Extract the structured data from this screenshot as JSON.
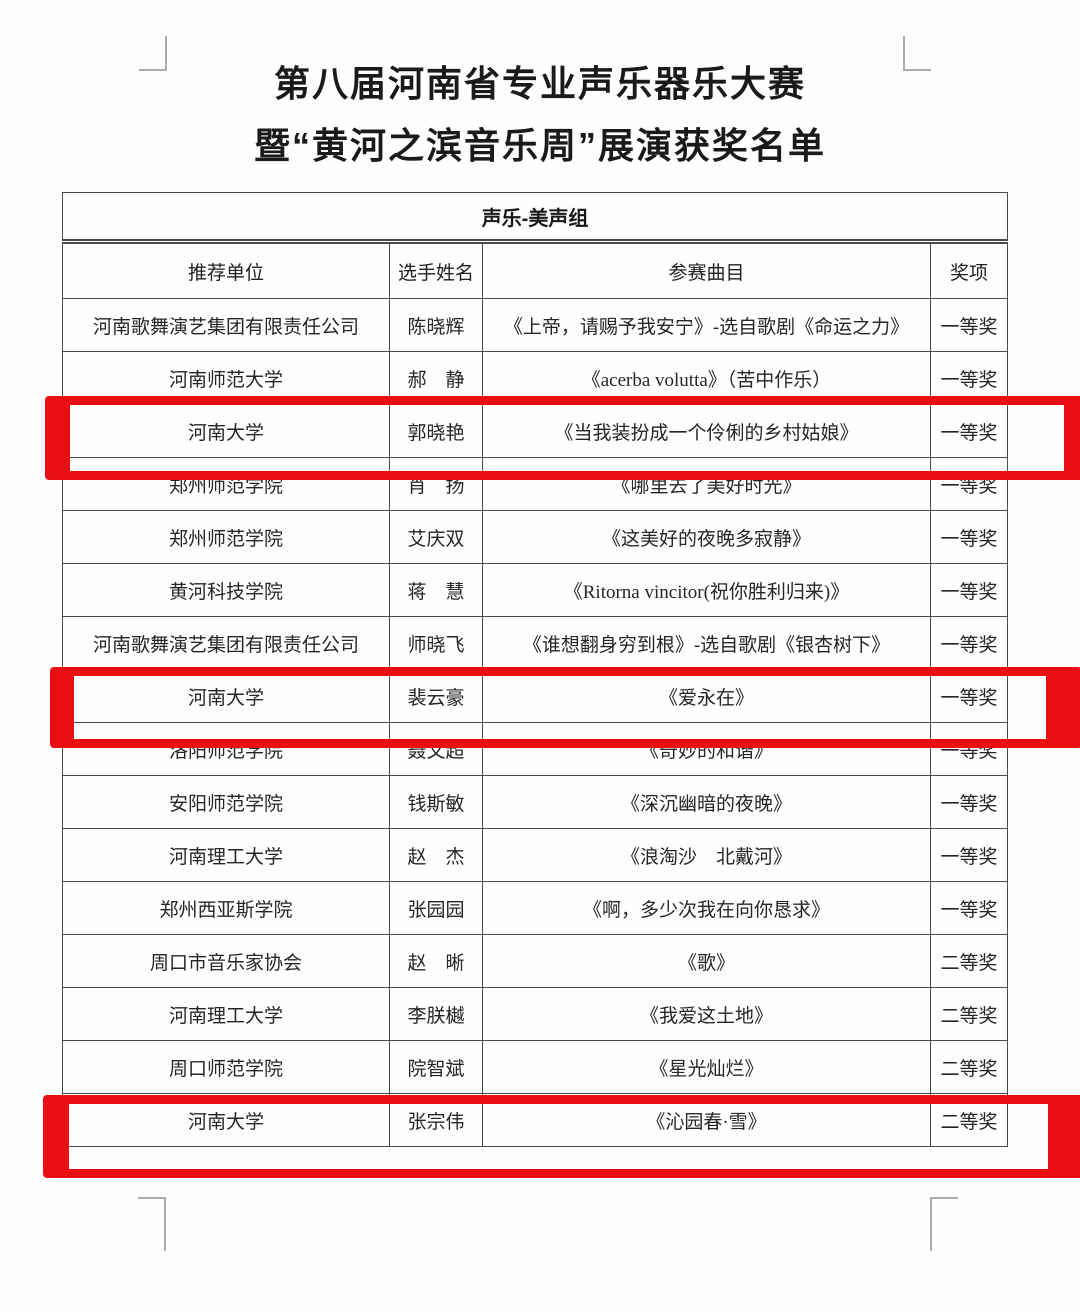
{
  "page": {
    "title_line1": "第八届河南省专业声乐器乐大赛",
    "title_line2": "暨“黄河之滨音乐周”展演获奖名单"
  },
  "table": {
    "group_header": "声乐-美声组",
    "columns": [
      "推荐单位",
      "选手姓名",
      "参赛曲目",
      "奖项"
    ],
    "rows": [
      {
        "unit": "河南歌舞演艺集团有限责任公司",
        "name": "陈晓辉",
        "piece": "《上帝，请赐予我安宁》-选自歌剧《命运之力》",
        "award": "一等奖",
        "highlighted": false
      },
      {
        "unit": "河南师范大学",
        "name": "郝　静",
        "piece": "《acerba volutta》（苦中作乐）",
        "award": "一等奖",
        "highlighted": false
      },
      {
        "unit": "河南大学",
        "name": "郭晓艳",
        "piece": "《当我装扮成一个伶俐的乡村姑娘》",
        "award": "一等奖",
        "highlighted": true
      },
      {
        "unit": "郑州师范学院",
        "name": "肖　扬",
        "piece": "《哪里去了美好时光》",
        "award": "一等奖",
        "highlighted": false
      },
      {
        "unit": "郑州师范学院",
        "name": "艾庆双",
        "piece": "《这美好的夜晚多寂静》",
        "award": "一等奖",
        "highlighted": false
      },
      {
        "unit": "黄河科技学院",
        "name": "蒋　慧",
        "piece": "《Ritorna  vincitor(祝你胜利归来)》",
        "award": "一等奖",
        "highlighted": false
      },
      {
        "unit": "河南歌舞演艺集团有限责任公司",
        "name": "师晓飞",
        "piece": "《谁想翻身穷到根》-选自歌剧《银杏树下》",
        "award": "一等奖",
        "highlighted": false
      },
      {
        "unit": "河南大学",
        "name": "裴云豪",
        "piece": "《爱永在》",
        "award": "一等奖",
        "highlighted": true
      },
      {
        "unit": "洛阳师范学院",
        "name": "聂文超",
        "piece": "《奇妙的和谐》",
        "award": "一等奖",
        "highlighted": false
      },
      {
        "unit": "安阳师范学院",
        "name": "钱斯敏",
        "piece": "《深沉幽暗的夜晚》",
        "award": "一等奖",
        "highlighted": false
      },
      {
        "unit": "河南理工大学",
        "name": "赵　杰",
        "piece": "《浪淘沙　北戴河》",
        "award": "一等奖",
        "highlighted": false
      },
      {
        "unit": "郑州西亚斯学院",
        "name": "张园园",
        "piece": "《啊，多少次我在向你恳求》",
        "award": "一等奖",
        "highlighted": false
      },
      {
        "unit": "周口市音乐家协会",
        "name": "赵　晰",
        "piece": "《歌》",
        "award": "二等奖",
        "highlighted": false
      },
      {
        "unit": "河南理工大学",
        "name": "李朕樾",
        "piece": "《我爱这土地》",
        "award": "二等奖",
        "highlighted": false
      },
      {
        "unit": "周口师范学院",
        "name": "院智斌",
        "piece": "《星光灿烂》",
        "award": "二等奖",
        "highlighted": false
      },
      {
        "unit": "河南大学",
        "name": "张宗伟",
        "piece": "《沁园春·雪》",
        "award": "二等奖",
        "highlighted": true
      }
    ]
  },
  "annotations": {
    "highlight_color": "#ea0f13",
    "highlighted_row_indices": [
      2,
      7,
      15
    ]
  }
}
